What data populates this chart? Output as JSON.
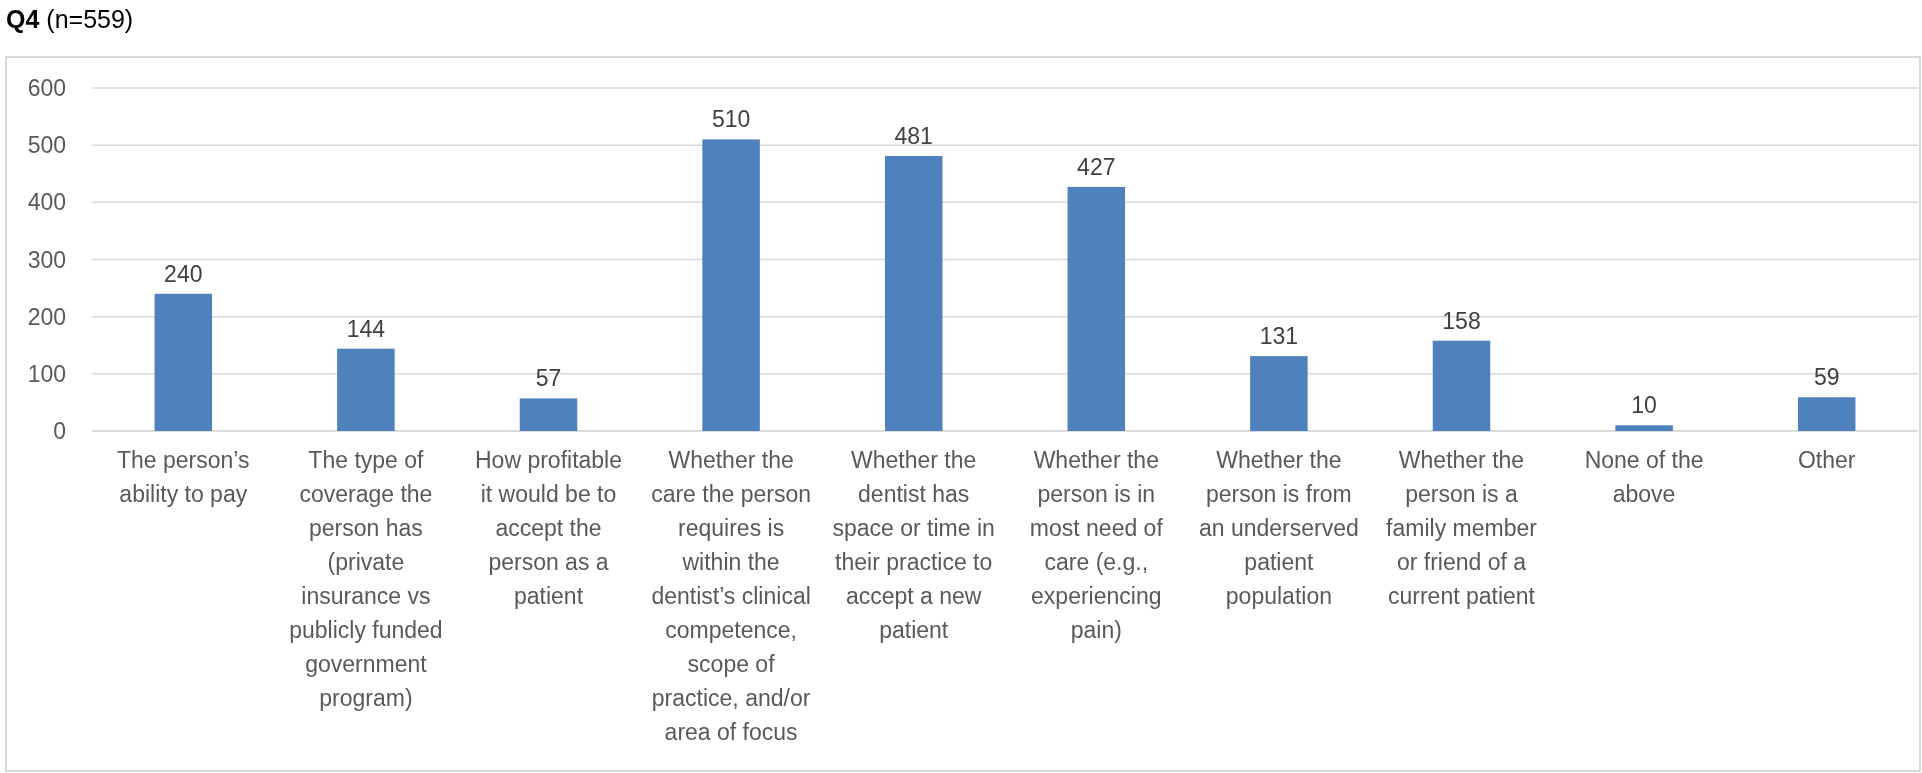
{
  "chart_data": {
    "type": "bar",
    "title": "Q4 (n=559)",
    "categories": [
      "The person’s ability to pay",
      "The type of coverage the person has (private insurance vs publicly funded government program)",
      "How profitable it would be to accept the person as a patient",
      "Whether the care the person requires is within the dentist’s clinical competence, scope of practice, and/or area of focus",
      "Whether the dentist has space or time in their practice to accept a new patient",
      "Whether the person is in most need of care (e.g., experiencing pain)",
      "Whether the person is from an underserved patient population",
      "Whether the person is a family member or friend of a current patient",
      "None of the above",
      "Other"
    ],
    "values": [
      240,
      144,
      57,
      510,
      481,
      427,
      131,
      158,
      10,
      59
    ],
    "color": "#4f81bd",
    "ylim": [
      0,
      600
    ],
    "yticks": [
      0,
      100,
      200,
      300,
      400,
      500,
      600
    ],
    "grid": "y",
    "data_labels": true
  }
}
